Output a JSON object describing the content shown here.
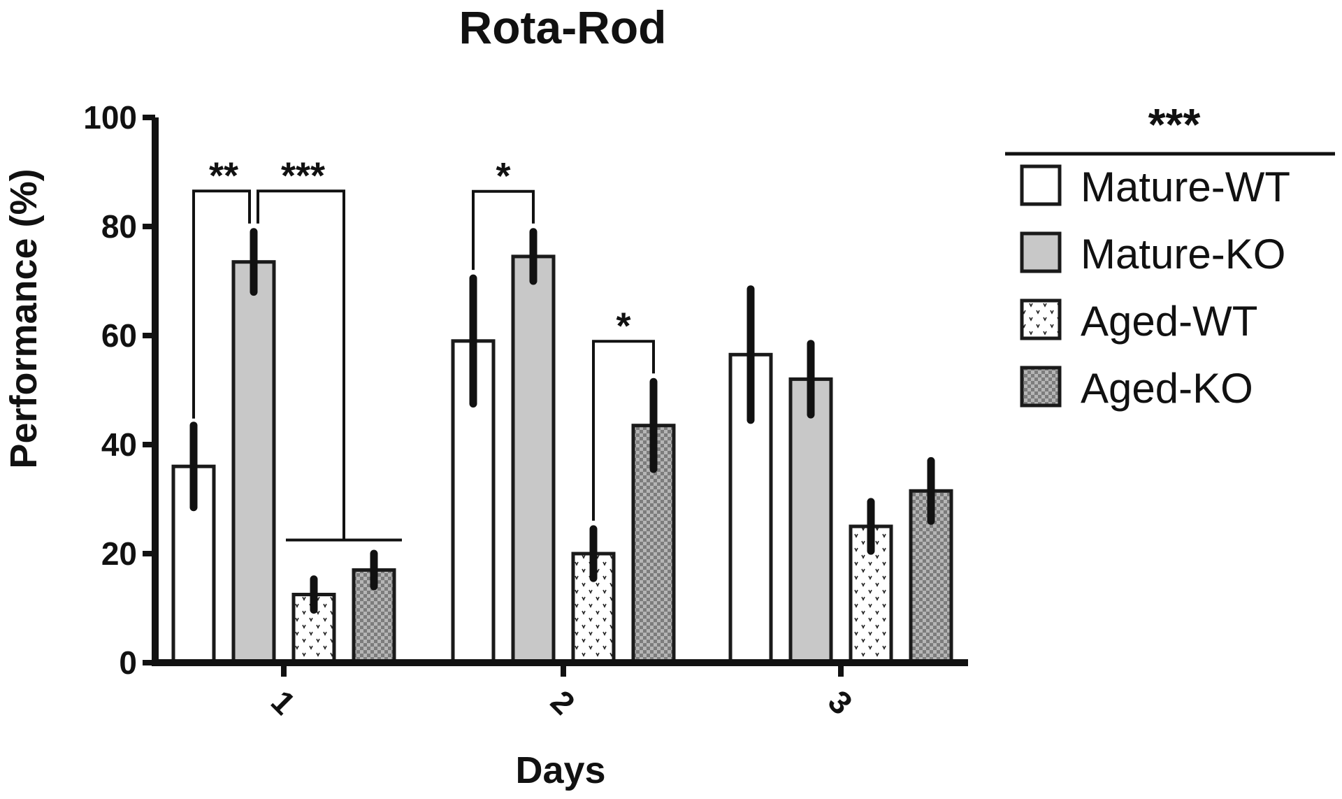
{
  "chart_data": {
    "type": "bar",
    "title": "Rota-Rod",
    "xlabel": "Days",
    "ylabel": "Performance (%)",
    "ylim": [
      0,
      100
    ],
    "yticks": [
      0,
      20,
      40,
      60,
      80,
      100
    ],
    "categories": [
      "1",
      "2",
      "3"
    ],
    "series": [
      {
        "name": "Mature-WT",
        "values": [
          36,
          59,
          56.5
        ],
        "errors": [
          7.5,
          11.5,
          12
        ],
        "fill": "white"
      },
      {
        "name": "Mature-KO",
        "values": [
          73.5,
          74.5,
          52
        ],
        "errors": [
          5.5,
          4.5,
          6.5
        ],
        "fill": "gray"
      },
      {
        "name": "Aged-WT",
        "values": [
          12.5,
          20,
          25
        ],
        "errors": [
          2.8,
          4.5,
          4.5
        ],
        "fill": "dots"
      },
      {
        "name": "Aged-KO",
        "values": [
          17,
          43.5,
          31.5
        ],
        "errors": [
          3,
          8,
          5.5
        ],
        "fill": "checker"
      }
    ],
    "legend_position": "right",
    "legend_significance": "***",
    "annotations": [
      {
        "text": "**",
        "category": "1",
        "from": "Mature-WT",
        "to": "Mature-KO"
      },
      {
        "text": "***",
        "category": "1",
        "from": "Mature-KO",
        "to": "Aged-WT + Aged-KO"
      },
      {
        "text": "*",
        "category": "2",
        "from": "Mature-WT",
        "to": "Mature-KO"
      },
      {
        "text": "*",
        "category": "2",
        "from": "Aged-WT",
        "to": "Aged-KO"
      }
    ],
    "grid": false
  },
  "colors": {
    "axis": "#111111",
    "bar_stroke": "#1a1a1a",
    "white_fill": "#ffffff",
    "gray_fill": "#c8c8c8",
    "checker_light": "#b5b5b5",
    "checker_dark": "#7c7c7c"
  }
}
